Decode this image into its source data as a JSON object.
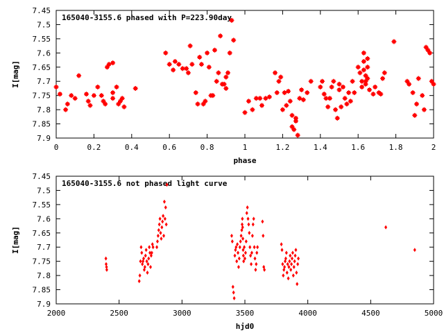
{
  "chart_data": [
    {
      "type": "scatter",
      "title": "165040-3155.6 phased with P=223.90day",
      "xlabel": "phase",
      "ylabel": "I[mag]",
      "xlim": [
        0,
        2
      ],
      "ylim": [
        7.45,
        7.9
      ],
      "y_inverted": true,
      "grid": false,
      "marker": "star",
      "color": "#ff0000",
      "xticks": [
        "0",
        "0.2",
        "0.4",
        "0.6",
        "0.8",
        "1",
        "1.2",
        "1.4",
        "1.6",
        "1.8",
        "2"
      ],
      "yticks": [
        "7.45",
        "7.5",
        "7.55",
        "7.6",
        "7.65",
        "7.7",
        "7.75",
        "7.8",
        "7.85",
        "7.9"
      ],
      "points": [
        [
          0.0,
          7.72
        ],
        [
          0.02,
          7.745
        ],
        [
          0.05,
          7.8
        ],
        [
          0.06,
          7.78
        ],
        [
          0.08,
          7.75
        ],
        [
          0.1,
          7.76
        ],
        [
          0.12,
          7.68
        ],
        [
          0.16,
          7.745
        ],
        [
          0.17,
          7.77
        ],
        [
          0.18,
          7.785
        ],
        [
          0.2,
          7.75
        ],
        [
          0.22,
          7.72
        ],
        [
          0.24,
          7.75
        ],
        [
          0.25,
          7.77
        ],
        [
          0.26,
          7.78
        ],
        [
          0.27,
          7.65
        ],
        [
          0.28,
          7.64
        ],
        [
          0.3,
          7.74
        ],
        [
          0.3,
          7.76
        ],
        [
          0.3,
          7.635
        ],
        [
          0.32,
          7.72
        ],
        [
          0.33,
          7.78
        ],
        [
          0.34,
          7.77
        ],
        [
          0.35,
          7.76
        ],
        [
          0.36,
          7.79
        ],
        [
          0.42,
          7.725
        ],
        [
          0.58,
          7.6
        ],
        [
          0.6,
          7.64
        ],
        [
          0.62,
          7.66
        ],
        [
          0.63,
          7.63
        ],
        [
          0.65,
          7.64
        ],
        [
          0.67,
          7.655
        ],
        [
          0.69,
          7.655
        ],
        [
          0.7,
          7.67
        ],
        [
          0.71,
          7.575
        ],
        [
          0.72,
          7.64
        ],
        [
          0.74,
          7.74
        ],
        [
          0.75,
          7.78
        ],
        [
          0.76,
          7.615
        ],
        [
          0.77,
          7.64
        ],
        [
          0.78,
          7.78
        ],
        [
          0.79,
          7.77
        ],
        [
          0.8,
          7.6
        ],
        [
          0.81,
          7.65
        ],
        [
          0.82,
          7.75
        ],
        [
          0.83,
          7.75
        ],
        [
          0.84,
          7.59
        ],
        [
          0.85,
          7.7
        ],
        [
          0.86,
          7.67
        ],
        [
          0.87,
          7.54
        ],
        [
          0.88,
          7.71
        ],
        [
          0.89,
          7.71
        ],
        [
          0.9,
          7.725
        ],
        [
          0.9,
          7.685
        ],
        [
          0.91,
          7.67
        ],
        [
          0.92,
          7.6
        ],
        [
          0.93,
          7.485
        ],
        [
          0.94,
          7.555
        ],
        [
          1.0,
          7.81
        ],
        [
          1.02,
          7.77
        ],
        [
          1.04,
          7.8
        ],
        [
          1.06,
          7.76
        ],
        [
          1.08,
          7.76
        ],
        [
          1.09,
          7.785
        ],
        [
          1.11,
          7.76
        ],
        [
          1.13,
          7.755
        ],
        [
          1.16,
          7.67
        ],
        [
          1.17,
          7.74
        ],
        [
          1.18,
          7.7
        ],
        [
          1.19,
          7.685
        ],
        [
          1.2,
          7.8
        ],
        [
          1.21,
          7.74
        ],
        [
          1.22,
          7.785
        ],
        [
          1.23,
          7.735
        ],
        [
          1.24,
          7.77
        ],
        [
          1.25,
          7.82
        ],
        [
          1.25,
          7.86
        ],
        [
          1.26,
          7.87
        ],
        [
          1.27,
          7.84
        ],
        [
          1.27,
          7.83
        ],
        [
          1.28,
          7.89
        ],
        [
          1.29,
          7.76
        ],
        [
          1.3,
          7.73
        ],
        [
          1.31,
          7.765
        ],
        [
          1.33,
          7.74
        ],
        [
          1.35,
          7.7
        ],
        [
          1.4,
          7.72
        ],
        [
          1.41,
          7.7
        ],
        [
          1.42,
          7.745
        ],
        [
          1.43,
          7.76
        ],
        [
          1.44,
          7.79
        ],
        [
          1.45,
          7.76
        ],
        [
          1.46,
          7.72
        ],
        [
          1.47,
          7.7
        ],
        [
          1.48,
          7.8
        ],
        [
          1.49,
          7.83
        ],
        [
          1.5,
          7.73
        ],
        [
          1.5,
          7.71
        ],
        [
          1.51,
          7.79
        ],
        [
          1.52,
          7.72
        ],
        [
          1.53,
          7.76
        ],
        [
          1.54,
          7.78
        ],
        [
          1.55,
          7.74
        ],
        [
          1.56,
          7.77
        ],
        [
          1.57,
          7.7
        ],
        [
          1.58,
          7.74
        ],
        [
          1.6,
          7.65
        ],
        [
          1.61,
          7.67
        ],
        [
          1.62,
          7.7
        ],
        [
          1.62,
          7.72
        ],
        [
          1.63,
          7.6
        ],
        [
          1.63,
          7.63
        ],
        [
          1.63,
          7.66
        ],
        [
          1.64,
          7.68
        ],
        [
          1.64,
          7.7
        ],
        [
          1.64,
          7.71
        ],
        [
          1.65,
          7.62
        ],
        [
          1.65,
          7.65
        ],
        [
          1.65,
          7.69
        ],
        [
          1.66,
          7.73
        ],
        [
          1.68,
          7.745
        ],
        [
          1.69,
          7.72
        ],
        [
          1.71,
          7.74
        ],
        [
          1.72,
          7.745
        ],
        [
          1.73,
          7.69
        ],
        [
          1.74,
          7.67
        ],
        [
          1.79,
          7.56
        ],
        [
          1.86,
          7.7
        ],
        [
          1.87,
          7.71
        ],
        [
          1.89,
          7.74
        ],
        [
          1.9,
          7.82
        ],
        [
          1.91,
          7.78
        ],
        [
          1.92,
          7.69
        ],
        [
          1.94,
          7.75
        ],
        [
          1.95,
          7.8
        ],
        [
          1.96,
          7.58
        ],
        [
          1.97,
          7.59
        ],
        [
          1.98,
          7.6
        ],
        [
          1.99,
          7.7
        ],
        [
          2.0,
          7.71
        ]
      ]
    },
    {
      "type": "scatter",
      "title": "165040-3155.6 not phased light curve",
      "xlabel": "hjd0",
      "ylabel": "I[mag]",
      "xlim": [
        2000,
        5000
      ],
      "ylim": [
        7.45,
        7.9
      ],
      "y_inverted": true,
      "grid": false,
      "marker": "diamond",
      "color": "#ff0000",
      "xticks": [
        "2000",
        "2500",
        "3000",
        "3500",
        "4000",
        "4500",
        "5000"
      ],
      "yticks": [
        "7.45",
        "7.5",
        "7.55",
        "7.6",
        "7.65",
        "7.7",
        "7.75",
        "7.8",
        "7.85",
        "7.9"
      ],
      "points": [
        [
          2395,
          7.74
        ],
        [
          2397,
          7.76
        ],
        [
          2400,
          7.77
        ],
        [
          2402,
          7.78
        ],
        [
          2660,
          7.82
        ],
        [
          2665,
          7.8
        ],
        [
          2670,
          7.75
        ],
        [
          2675,
          7.7
        ],
        [
          2680,
          7.72
        ],
        [
          2685,
          7.76
        ],
        [
          2690,
          7.75
        ],
        [
          2695,
          7.74
        ],
        [
          2700,
          7.78
        ],
        [
          2705,
          7.77
        ],
        [
          2710,
          7.73
        ],
        [
          2715,
          7.71
        ],
        [
          2720,
          7.75
        ],
        [
          2725,
          7.79
        ],
        [
          2730,
          7.76
        ],
        [
          2735,
          7.74
        ],
        [
          2740,
          7.7
        ],
        [
          2745,
          7.72
        ],
        [
          2750,
          7.77
        ],
        [
          2755,
          7.73
        ],
        [
          2760,
          7.72
        ],
        [
          2765,
          7.69
        ],
        [
          2770,
          7.7
        ],
        [
          2800,
          7.7
        ],
        [
          2805,
          7.68
        ],
        [
          2810,
          7.66
        ],
        [
          2815,
          7.64
        ],
        [
          2820,
          7.62
        ],
        [
          2825,
          7.6
        ],
        [
          2830,
          7.65
        ],
        [
          2835,
          7.67
        ],
        [
          2840,
          7.63
        ],
        [
          2845,
          7.61
        ],
        [
          2850,
          7.59
        ],
        [
          2855,
          7.66
        ],
        [
          2860,
          7.54
        ],
        [
          2865,
          7.6
        ],
        [
          2870,
          7.56
        ],
        [
          2875,
          7.62
        ],
        [
          2880,
          7.48
        ],
        [
          3395,
          7.66
        ],
        [
          3400,
          7.68
        ],
        [
          3405,
          7.84
        ],
        [
          3410,
          7.86
        ],
        [
          3415,
          7.88
        ],
        [
          3420,
          7.73
        ],
        [
          3425,
          7.71
        ],
        [
          3430,
          7.7
        ],
        [
          3435,
          7.75
        ],
        [
          3440,
          7.69
        ],
        [
          3445,
          7.72
        ],
        [
          3450,
          7.77
        ],
        [
          3455,
          7.74
        ],
        [
          3460,
          7.7
        ],
        [
          3465,
          7.68
        ],
        [
          3470,
          7.66
        ],
        [
          3475,
          7.64
        ],
        [
          3478,
          7.62
        ],
        [
          3480,
          7.6
        ],
        [
          3482,
          7.63
        ],
        [
          3484,
          7.67
        ],
        [
          3486,
          7.71
        ],
        [
          3488,
          7.73
        ],
        [
          3490,
          7.75
        ],
        [
          3495,
          7.7
        ],
        [
          3500,
          7.74
        ],
        [
          3505,
          7.72
        ],
        [
          3510,
          7.68
        ],
        [
          3515,
          7.58
        ],
        [
          3520,
          7.56
        ],
        [
          3525,
          7.6
        ],
        [
          3530,
          7.62
        ],
        [
          3535,
          7.65
        ],
        [
          3540,
          7.7
        ],
        [
          3545,
          7.73
        ],
        [
          3550,
          7.76
        ],
        [
          3555,
          7.72
        ],
        [
          3560,
          7.66
        ],
        [
          3565,
          7.62
        ],
        [
          3570,
          7.6
        ],
        [
          3575,
          7.7
        ],
        [
          3580,
          7.74
        ],
        [
          3585,
          7.78
        ],
        [
          3590,
          7.76
        ],
        [
          3595,
          7.72
        ],
        [
          3600,
          7.7
        ],
        [
          3640,
          7.61
        ],
        [
          3645,
          7.66
        ],
        [
          3650,
          7.77
        ],
        [
          3655,
          7.78
        ],
        [
          3790,
          7.69
        ],
        [
          3795,
          7.71
        ],
        [
          3800,
          7.76
        ],
        [
          3805,
          7.8
        ],
        [
          3810,
          7.78
        ],
        [
          3815,
          7.77
        ],
        [
          3820,
          7.75
        ],
        [
          3825,
          7.74
        ],
        [
          3830,
          7.72
        ],
        [
          3835,
          7.79
        ],
        [
          3840,
          7.76
        ],
        [
          3845,
          7.81
        ],
        [
          3850,
          7.77
        ],
        [
          3855,
          7.75
        ],
        [
          3860,
          7.73
        ],
        [
          3865,
          7.78
        ],
        [
          3870,
          7.76
        ],
        [
          3875,
          7.74
        ],
        [
          3880,
          7.72
        ],
        [
          3885,
          7.8
        ],
        [
          3890,
          7.77
        ],
        [
          3895,
          7.75
        ],
        [
          3900,
          7.73
        ],
        [
          3905,
          7.71
        ],
        [
          3910,
          7.79
        ],
        [
          3915,
          7.83
        ],
        [
          3920,
          7.76
        ],
        [
          3925,
          7.74
        ],
        [
          4620,
          7.63
        ],
        [
          4850,
          7.71
        ]
      ]
    }
  ]
}
